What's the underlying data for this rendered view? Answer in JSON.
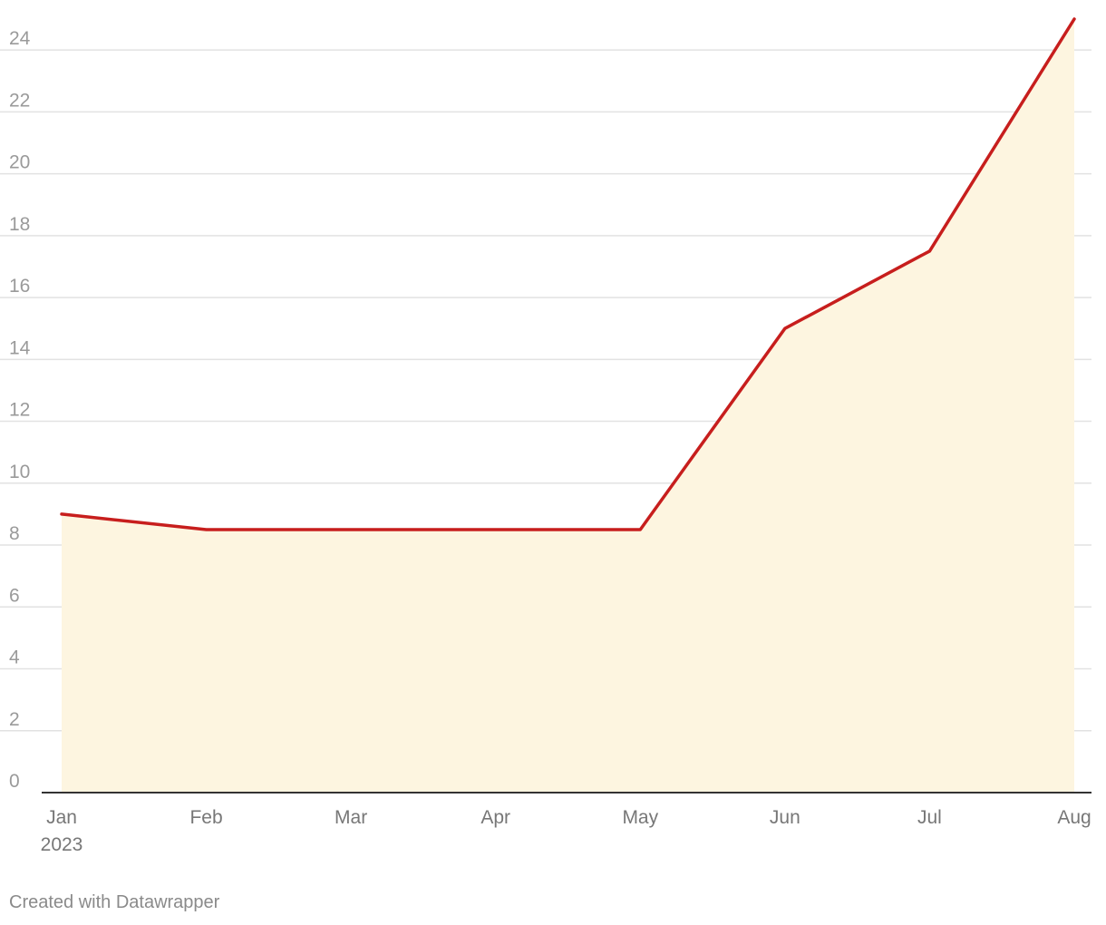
{
  "chart_data": {
    "type": "area",
    "x": [
      "2023-01",
      "2023-02",
      "2023-03",
      "2023-04",
      "2023-05",
      "2023-06",
      "2023-07",
      "2023-08"
    ],
    "values": [
      9,
      8.5,
      8.5,
      8.5,
      8.5,
      15,
      17.5,
      25
    ],
    "xtick_labels": [
      "Jan",
      "Feb",
      "Mar",
      "Apr",
      "May",
      "Jun",
      "Jul",
      "Aug"
    ],
    "x_year_label": "2023",
    "yticks": [
      0,
      2,
      4,
      6,
      8,
      10,
      12,
      14,
      16,
      18,
      20,
      22,
      24
    ],
    "ylim": [
      0,
      25
    ],
    "grid": true,
    "legend": "none",
    "title": "",
    "xlabel": "",
    "ylabel": "",
    "colors": {
      "line": "#c71e1d",
      "fill": "#fdf5e0",
      "grid": "#e2e2e2",
      "baseline": "#333333",
      "tick_text": "#9a9a9a",
      "month_text": "#777777"
    }
  },
  "footer": {
    "credit": "Created with Datawrapper"
  }
}
